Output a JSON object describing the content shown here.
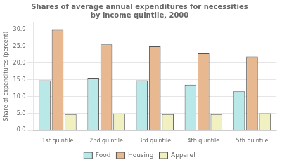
{
  "chart_data": {
    "type": "bar",
    "title": "Shares of average annual expenditures for necessities\nby income quintile, 2000",
    "categories": [
      "1st quintile",
      "2nd quintile",
      "3rd quintile",
      "4th quintile",
      "5th quintile"
    ],
    "series": [
      {
        "name": "Food",
        "color": "#b8e8e8",
        "values": [
          14.8,
          15.5,
          14.8,
          13.5,
          11.5
        ]
      },
      {
        "name": "Housing",
        "color": "#e8b890",
        "values": [
          29.8,
          25.5,
          24.9,
          22.8,
          21.9
        ]
      },
      {
        "name": "Apparel",
        "color": "#f0f0c0",
        "values": [
          4.7,
          4.9,
          4.7,
          4.7,
          5.0
        ]
      }
    ],
    "ylabel": "Share of expenditures (percent)",
    "ylim": [
      0,
      32
    ],
    "yticks": [
      {
        "value": 0,
        "label": "0.0"
      },
      {
        "value": 5,
        "label": "5.0"
      },
      {
        "value": 10,
        "label": "10.0"
      },
      {
        "value": 15,
        "label": "15.0"
      },
      {
        "value": 20,
        "label": "20.0"
      },
      {
        "value": 25,
        "label": "25.0"
      },
      {
        "value": 30,
        "label": "30.0"
      }
    ],
    "grid": "y",
    "legend": "bottom"
  }
}
